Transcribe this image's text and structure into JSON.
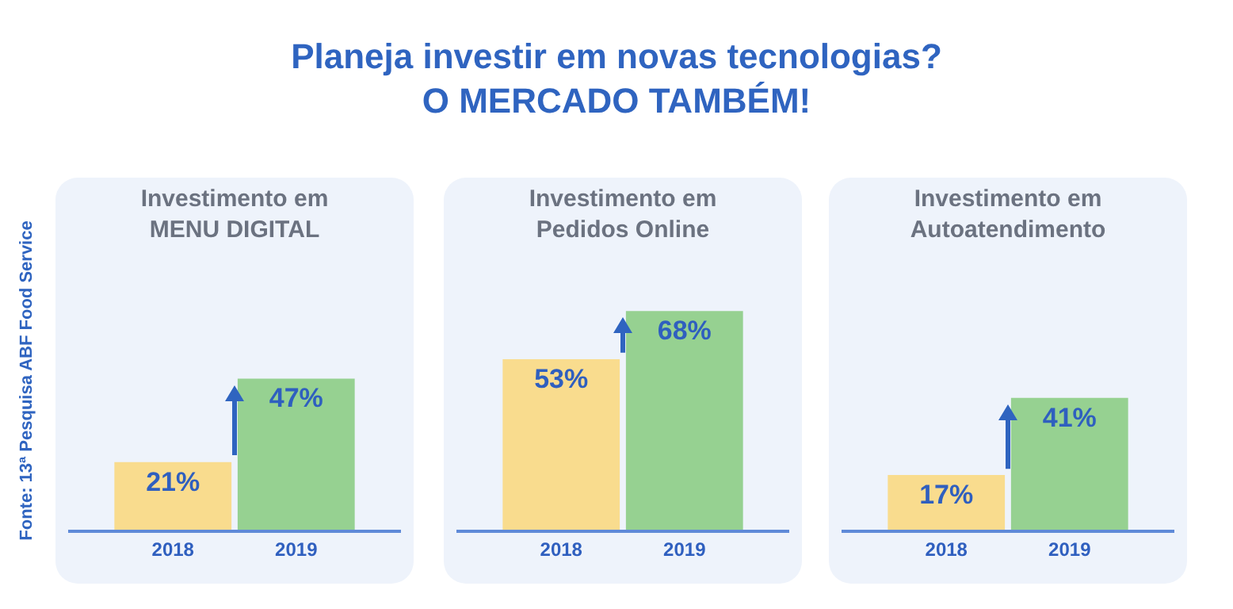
{
  "chart_data": [
    {
      "type": "bar",
      "title": "Investimento em\nMENU DIGITAL",
      "categories": [
        "2018",
        "2019"
      ],
      "values": [
        21,
        47
      ],
      "value_labels": [
        "21%",
        "47%"
      ],
      "colors": [
        "#f9dc8e",
        "#96d191"
      ],
      "annotations": [
        "Planeja investir em novas tecnologias?\nO MERCADO TAMBÉM!",
        "Fonte: 13ª Pesquisa ABF Food Service"
      ]
    },
    {
      "type": "bar",
      "title": "Investimento em\nPedidos Online",
      "categories": [
        "2018",
        "2019"
      ],
      "values": [
        53,
        68
      ],
      "value_labels": [
        "53%",
        "68%"
      ],
      "colors": [
        "#f9dc8e",
        "#96d191"
      ]
    },
    {
      "type": "bar",
      "title": "Investimento em\nAutoatendimento",
      "categories": [
        "2018",
        "2019"
      ],
      "values": [
        17,
        41
      ],
      "value_labels": [
        "17%",
        "41%"
      ],
      "colors": [
        "#f9dc8e",
        "#96d191"
      ]
    }
  ]
}
